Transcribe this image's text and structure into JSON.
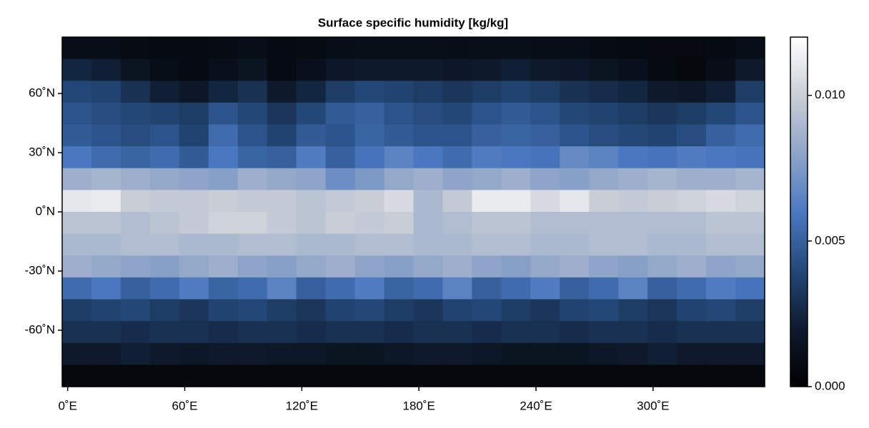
{
  "chart_data": {
    "type": "heatmap",
    "title": "Surface specific humidity [kg/kg]",
    "xlim": [
      -2.8125,
      357.1875
    ],
    "ylim": [
      -88.6,
      88.6
    ],
    "xticks": [
      {
        "value": 0,
        "label": "0˚E"
      },
      {
        "value": 60,
        "label": "60˚E"
      },
      {
        "value": 120,
        "label": "120˚E"
      },
      {
        "value": 180,
        "label": "180˚E"
      },
      {
        "value": 240,
        "label": "240˚E"
      },
      {
        "value": 300,
        "label": "300˚E"
      }
    ],
    "yticks": [
      {
        "value": 60,
        "label": "60˚N"
      },
      {
        "value": 30,
        "label": "30˚N"
      },
      {
        "value": 0,
        "label": "0˚N"
      },
      {
        "value": -30,
        "label": "-30˚N"
      },
      {
        "value": -60,
        "label": "-60˚N"
      }
    ],
    "clim": [
      0,
      0.012
    ],
    "cticks": [
      {
        "value": 0,
        "label": "0.000"
      },
      {
        "value": 0.005,
        "label": "0.005"
      },
      {
        "value": 0.01,
        "label": "0.010"
      }
    ],
    "colormap": [
      "#010101",
      "#0e1a2c",
      "#234878",
      "#4a78c0",
      "#8ea4c8",
      "#c9ced6",
      "#ffffff"
    ],
    "z": [
      [
        0.001,
        0.001,
        0.0009,
        0.0008,
        0.0008,
        0.0009,
        0.001,
        0.0008,
        0.0009,
        0.001,
        0.0011,
        0.0011,
        0.0011,
        0.001,
        0.0011,
        0.0011,
        0.001,
        0.001,
        0.0009,
        0.0008,
        0.0007,
        0.0007,
        0.0008,
        0.001
      ],
      [
        0.0025,
        0.0022,
        0.0015,
        0.001,
        0.0008,
        0.0012,
        0.0015,
        0.0008,
        0.0012,
        0.0018,
        0.002,
        0.002,
        0.002,
        0.0018,
        0.002,
        0.0022,
        0.002,
        0.0018,
        0.0015,
        0.0012,
        0.0008,
        0.0006,
        0.001,
        0.002
      ],
      [
        0.004,
        0.0038,
        0.003,
        0.0022,
        0.0018,
        0.0025,
        0.003,
        0.002,
        0.0025,
        0.0035,
        0.004,
        0.0038,
        0.0035,
        0.0032,
        0.0035,
        0.0038,
        0.0035,
        0.003,
        0.0028,
        0.0025,
        0.002,
        0.0018,
        0.0022,
        0.0035
      ],
      [
        0.0045,
        0.0042,
        0.004,
        0.0038,
        0.0035,
        0.0045,
        0.004,
        0.0032,
        0.004,
        0.0048,
        0.005,
        0.0045,
        0.0042,
        0.004,
        0.0045,
        0.0048,
        0.0045,
        0.004,
        0.0038,
        0.0035,
        0.0032,
        0.0035,
        0.004,
        0.0045
      ],
      [
        0.0048,
        0.0045,
        0.0042,
        0.0045,
        0.0038,
        0.0055,
        0.0045,
        0.0038,
        0.0048,
        0.0045,
        0.0052,
        0.0048,
        0.0045,
        0.0045,
        0.005,
        0.0052,
        0.005,
        0.0045,
        0.0042,
        0.004,
        0.0038,
        0.0042,
        0.005,
        0.0055
      ],
      [
        0.006,
        0.0055,
        0.0052,
        0.0055,
        0.0048,
        0.006,
        0.0052,
        0.005,
        0.0062,
        0.005,
        0.0058,
        0.0065,
        0.006,
        0.0055,
        0.0062,
        0.006,
        0.0058,
        0.0068,
        0.0065,
        0.006,
        0.0058,
        0.0062,
        0.006,
        0.0058
      ],
      [
        0.0085,
        0.0088,
        0.0085,
        0.0082,
        0.008,
        0.0078,
        0.0085,
        0.0082,
        0.008,
        0.007,
        0.0075,
        0.0082,
        0.0085,
        0.008,
        0.0082,
        0.0085,
        0.008,
        0.0078,
        0.0082,
        0.0085,
        0.0088,
        0.0085,
        0.0085,
        0.0088
      ],
      [
        0.011,
        0.0112,
        0.01,
        0.0098,
        0.0098,
        0.01,
        0.0098,
        0.0098,
        0.0095,
        0.0098,
        0.01,
        0.0105,
        0.009,
        0.0098,
        0.0112,
        0.0112,
        0.0105,
        0.011,
        0.01,
        0.0098,
        0.01,
        0.0102,
        0.0105,
        0.0102
      ],
      [
        0.0095,
        0.0095,
        0.0092,
        0.0095,
        0.0098,
        0.0102,
        0.0102,
        0.0098,
        0.0095,
        0.01,
        0.0098,
        0.01,
        0.009,
        0.0092,
        0.0095,
        0.0095,
        0.0092,
        0.0092,
        0.0092,
        0.0092,
        0.0092,
        0.0092,
        0.0095,
        0.0095
      ],
      [
        0.009,
        0.009,
        0.0092,
        0.0092,
        0.009,
        0.009,
        0.0092,
        0.0092,
        0.009,
        0.009,
        0.0092,
        0.0092,
        0.009,
        0.009,
        0.0092,
        0.0092,
        0.009,
        0.009,
        0.0092,
        0.0092,
        0.009,
        0.009,
        0.0092,
        0.0092
      ],
      [
        0.0085,
        0.0082,
        0.008,
        0.0078,
        0.0082,
        0.0085,
        0.008,
        0.0078,
        0.0082,
        0.0085,
        0.008,
        0.0078,
        0.0082,
        0.0085,
        0.008,
        0.0078,
        0.0082,
        0.0085,
        0.008,
        0.0078,
        0.0082,
        0.0085,
        0.008,
        0.0082
      ],
      [
        0.0055,
        0.006,
        0.005,
        0.0055,
        0.0062,
        0.0052,
        0.0055,
        0.0065,
        0.005,
        0.0055,
        0.0062,
        0.0052,
        0.0055,
        0.0065,
        0.005,
        0.0055,
        0.0062,
        0.005,
        0.0055,
        0.0065,
        0.005,
        0.0055,
        0.0062,
        0.0058
      ],
      [
        0.0035,
        0.0038,
        0.004,
        0.0035,
        0.0032,
        0.0038,
        0.004,
        0.0035,
        0.0032,
        0.0038,
        0.004,
        0.0035,
        0.0032,
        0.0038,
        0.004,
        0.0035,
        0.0032,
        0.0038,
        0.004,
        0.0035,
        0.0032,
        0.0038,
        0.004,
        0.0036
      ],
      [
        0.003,
        0.003,
        0.0028,
        0.003,
        0.003,
        0.0028,
        0.003,
        0.003,
        0.0028,
        0.003,
        0.003,
        0.0028,
        0.003,
        0.003,
        0.0028,
        0.003,
        0.003,
        0.0028,
        0.003,
        0.003,
        0.0028,
        0.003,
        0.003,
        0.003
      ],
      [
        0.002,
        0.002,
        0.0022,
        0.002,
        0.0018,
        0.002,
        0.002,
        0.0018,
        0.0018,
        0.0015,
        0.0015,
        0.0018,
        0.002,
        0.002,
        0.0018,
        0.0015,
        0.0015,
        0.0015,
        0.0018,
        0.002,
        0.0022,
        0.002,
        0.002,
        0.002
      ],
      [
        0.0006,
        0.0006,
        0.0006,
        0.0006,
        0.0006,
        0.0006,
        0.0006,
        0.0006,
        0.0006,
        0.0006,
        0.0006,
        0.0006,
        0.0006,
        0.0006,
        0.0006,
        0.0006,
        0.0006,
        0.0006,
        0.0006,
        0.0006,
        0.0006,
        0.0006,
        0.0006,
        0.0006
      ]
    ]
  }
}
